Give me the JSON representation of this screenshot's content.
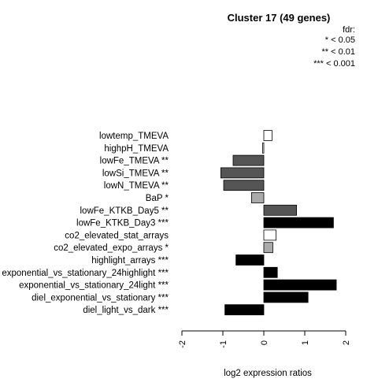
{
  "chart_data": {
    "type": "bar",
    "orientation": "horizontal",
    "title": "Cluster 17 (49 genes)",
    "xlabel": "log2 expression ratios",
    "ylabel": "",
    "xlim": [
      -2,
      2
    ],
    "xticks": [
      "-2",
      "-1",
      "0",
      "1",
      "2"
    ],
    "legend": {
      "placement": "top-right",
      "title": "fdr:",
      "entries": [
        "* < 0.05",
        "** < 0.01",
        "*** < 0.001"
      ]
    },
    "categories": [
      "lowtemp_TMEVA",
      "highpH_TMEVA",
      "lowFe_TMEVA **",
      "lowSi_TMEVA **",
      "lowN_TMEVA **",
      "BaP *",
      "lowFe_KTKB_Day5 **",
      "lowFe_KTKB_Day3 ***",
      "co2_elevated_stat_arrays",
      "co2_elevated_expo_arrays *",
      "highlight_arrays ***",
      "exponential_vs_stationary_24highlight ***",
      "exponential_vs_stationary_24light ***",
      "diel_exponential_vs_stationary ***",
      "diel_light_vs_dark ***"
    ],
    "values": [
      0.2,
      -0.03,
      -0.75,
      -1.05,
      -0.98,
      -0.3,
      0.8,
      1.7,
      0.3,
      0.22,
      -0.68,
      0.33,
      1.77,
      1.08,
      -0.95
    ],
    "colors": [
      "#ffffff",
      "#ffffff",
      "#555555",
      "#555555",
      "#555555",
      "#aaaaaa",
      "#555555",
      "#000000",
      "#ffffff",
      "#aaaaaa",
      "#000000",
      "#000000",
      "#000000",
      "#000000",
      "#000000"
    ]
  }
}
